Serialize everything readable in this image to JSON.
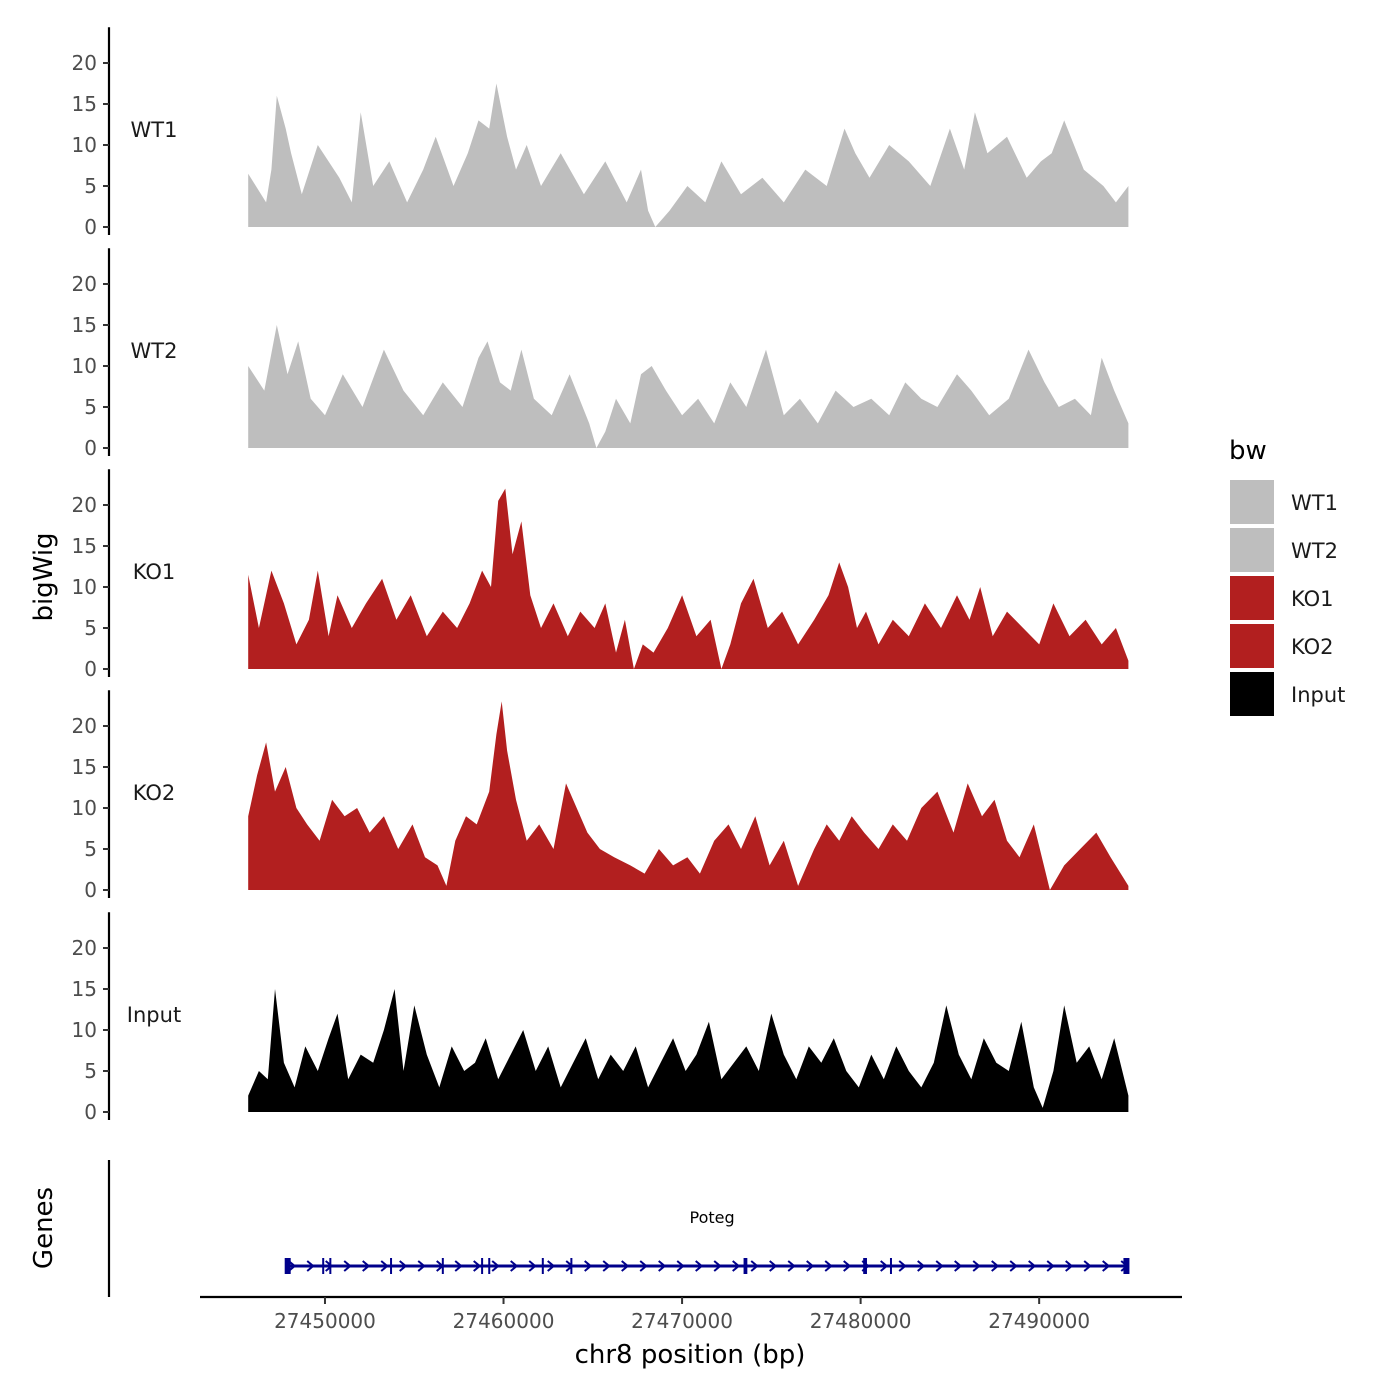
{
  "chart_data": {
    "type": "area",
    "chromosome": "chr8",
    "xlabel": "chr8 position (bp)",
    "ylabel": "bigWig",
    "gene_track_label": "Genes",
    "xlim": [
      27443000,
      27498000
    ],
    "data_range": [
      27445700,
      27495000
    ],
    "xticks": [
      27450000,
      27460000,
      27470000,
      27480000,
      27490000
    ],
    "xtick_labels": [
      "27450000",
      "27460000",
      "27470000",
      "27480000",
      "27490000"
    ],
    "ylim": [
      0,
      24
    ],
    "yticks": [
      0,
      5,
      10,
      15,
      20
    ],
    "ytick_labels": [
      "0",
      "5",
      "10",
      "15",
      "20"
    ],
    "legend": {
      "title": "bw",
      "entries": [
        {
          "label": "WT1",
          "color": "#bebebe"
        },
        {
          "label": "WT2",
          "color": "#bebebe"
        },
        {
          "label": "KO1",
          "color": "#b21f1f"
        },
        {
          "label": "KO2",
          "color": "#b21f1f"
        },
        {
          "label": "Input",
          "color": "#000000"
        }
      ]
    },
    "series": [
      {
        "name": "WT1",
        "color": "#bebebe",
        "x": [
          27445700,
          27446700,
          27447000,
          27447300,
          27447800,
          27448100,
          27448700,
          27449600,
          27450800,
          27451500,
          27452000,
          27452700,
          27453600,
          27454600,
          27455500,
          27456200,
          27457200,
          27458000,
          27458600,
          27459200,
          27459600,
          27460200,
          27460700,
          27461300,
          27462100,
          27463200,
          27464500,
          27465700,
          27466900,
          27467700,
          27468100,
          27468500,
          27469300,
          27470300,
          27471300,
          27472200,
          27473300,
          27474500,
          27475700,
          27476900,
          27478100,
          27479100,
          27479700,
          27480500,
          27481600,
          27482700,
          27483900,
          27485000,
          27485800,
          27486400,
          27487100,
          27488200,
          27489300,
          27490100,
          27490700,
          27491400,
          27492500,
          27493600,
          27494300,
          27495000
        ],
        "values": [
          6.5,
          3,
          7,
          16,
          12,
          9,
          4,
          10,
          6,
          3,
          14,
          5,
          8,
          3,
          7,
          11,
          5,
          9,
          13,
          12,
          17.5,
          11,
          7,
          10,
          5,
          9,
          4,
          8,
          3,
          7,
          2,
          0,
          2,
          5,
          3,
          8,
          4,
          6,
          3,
          7,
          5,
          12,
          9,
          6,
          10,
          8,
          5,
          12,
          7,
          14,
          9,
          11,
          6,
          8,
          9,
          13,
          7,
          5,
          3,
          5
        ]
      },
      {
        "name": "WT2",
        "color": "#bebebe",
        "x": [
          27445700,
          27446600,
          27447300,
          27447900,
          27448500,
          27449200,
          27450000,
          27451000,
          27452100,
          27453300,
          27454400,
          27455500,
          27456600,
          27457700,
          27458600,
          27459100,
          27459800,
          27460400,
          27461000,
          27461700,
          27462700,
          27463700,
          27464800,
          27465200,
          27465700,
          27466300,
          27467100,
          27467700,
          27468300,
          27469100,
          27470000,
          27470900,
          27471800,
          27472700,
          27473600,
          27474700,
          27475700,
          27476600,
          27477600,
          27478600,
          27479600,
          27480600,
          27481600,
          27482500,
          27483400,
          27484300,
          27485400,
          27486200,
          27487200,
          27488300,
          27489400,
          27490300,
          27491100,
          27492000,
          27492900,
          27493500,
          27494200,
          27495000
        ],
        "values": [
          10,
          7,
          15,
          9,
          13,
          6,
          4,
          9,
          5,
          12,
          7,
          4,
          8,
          5,
          11,
          13,
          8,
          7,
          12,
          6,
          4,
          9,
          3,
          0,
          2,
          6,
          3,
          9,
          10,
          7,
          4,
          6,
          3,
          8,
          5,
          12,
          4,
          6,
          3,
          7,
          5,
          6,
          4,
          8,
          6,
          5,
          9,
          7,
          4,
          6,
          12,
          8,
          5,
          6,
          4,
          11,
          7,
          3
        ]
      },
      {
        "name": "KO1",
        "color": "#b21f1f",
        "x": [
          27445700,
          27446300,
          27447000,
          27447700,
          27448400,
          27449100,
          27449600,
          27450200,
          27450700,
          27451500,
          27452300,
          27453200,
          27454000,
          27454800,
          27455700,
          27456600,
          27457400,
          27458100,
          27458800,
          27459300,
          27459700,
          27460100,
          27460500,
          27461000,
          27461500,
          27462100,
          27462800,
          27463600,
          27464300,
          27465100,
          27465700,
          27466300,
          27466800,
          27467300,
          27467800,
          27468400,
          27469200,
          27470000,
          27470800,
          27471600,
          27472200,
          27472700,
          27473300,
          27474000,
          27474800,
          27475600,
          27476500,
          27477400,
          27478200,
          27478800,
          27479300,
          27479800,
          27480300,
          27481000,
          27481800,
          27482700,
          27483600,
          27484500,
          27485400,
          27486100,
          27486700,
          27487400,
          27488200,
          27489100,
          27490000,
          27490800,
          27491700,
          27492600,
          27493500,
          27494300,
          27495000
        ],
        "values": [
          11.5,
          5,
          12,
          8,
          3,
          6,
          12,
          4,
          9,
          5,
          8,
          11,
          6,
          9,
          4,
          7,
          5,
          8,
          12,
          10,
          20.5,
          22,
          14,
          18,
          9,
          5,
          8,
          4,
          7,
          5,
          8,
          2,
          6,
          0,
          3,
          2,
          5,
          9,
          4,
          6,
          0,
          3,
          8,
          11,
          5,
          7,
          3,
          6,
          9,
          13,
          10,
          5,
          7,
          3,
          6,
          4,
          8,
          5,
          9,
          6,
          10,
          4,
          7,
          5,
          3,
          8,
          4,
          6,
          3,
          5,
          1
        ]
      },
      {
        "name": "KO2",
        "color": "#b21f1f",
        "x": [
          27445700,
          27446200,
          27446700,
          27447200,
          27447800,
          27448400,
          27449000,
          27449700,
          27450400,
          27451100,
          27451800,
          27452500,
          27453300,
          27454100,
          27454900,
          27455600,
          27456300,
          27456800,
          27457300,
          27457900,
          27458500,
          27459200,
          27459600,
          27459900,
          27460200,
          27460700,
          27461300,
          27462000,
          27462800,
          27463500,
          27464100,
          27464700,
          27465400,
          27466200,
          27467100,
          27467900,
          27468700,
          27469500,
          27470300,
          27471000,
          27471800,
          27472600,
          27473300,
          27474100,
          27474900,
          27475700,
          27476500,
          27477400,
          27478100,
          27478800,
          27479500,
          27480200,
          27481000,
          27481800,
          27482600,
          27483400,
          27484300,
          27485200,
          27486000,
          27486800,
          27487500,
          27488200,
          27488900,
          27489700,
          27490600,
          27491400,
          27492300,
          27493200,
          27494000,
          27495000
        ],
        "values": [
          9,
          14,
          18,
          12,
          15,
          10,
          8,
          6,
          11,
          9,
          10,
          7,
          9,
          5,
          8,
          4,
          3,
          0.5,
          6,
          9,
          8,
          12,
          19,
          23,
          17,
          11,
          6,
          8,
          5,
          13,
          10,
          7,
          5,
          4,
          3,
          2,
          5,
          3,
          4,
          2,
          6,
          8,
          5,
          9,
          3,
          6,
          0.5,
          5,
          8,
          6,
          9,
          7,
          5,
          8,
          6,
          10,
          12,
          7,
          13,
          9,
          11,
          6,
          4,
          8,
          0,
          3,
          5,
          7,
          4,
          0.5
        ]
      },
      {
        "name": "Input",
        "color": "#000000",
        "x": [
          27445700,
          27446300,
          27446800,
          27447200,
          27447700,
          27448300,
          27448900,
          27449600,
          27450200,
          27450700,
          27451300,
          27452000,
          27452700,
          27453300,
          27453900,
          27454400,
          27455000,
          27455700,
          27456400,
          27457100,
          27457800,
          27458400,
          27459000,
          27459700,
          27460400,
          27461100,
          27461800,
          27462500,
          27463200,
          27463900,
          27464600,
          27465300,
          27466000,
          27466700,
          27467400,
          27468100,
          27468800,
          27469500,
          27470200,
          27470800,
          27471500,
          27472200,
          27472900,
          27473600,
          27474300,
          27475000,
          27475700,
          27476400,
          27477100,
          27477800,
          27478500,
          27479200,
          27479900,
          27480600,
          27481300,
          27482000,
          27482700,
          27483400,
          27484100,
          27484800,
          27485500,
          27486200,
          27486900,
          27487600,
          27488300,
          27489000,
          27489700,
          27490200,
          27490800,
          27491400,
          27492100,
          27492800,
          27493500,
          27494200,
          27495000
        ],
        "values": [
          2,
          5,
          4,
          15,
          6,
          3,
          8,
          5,
          9,
          12,
          4,
          7,
          6,
          10,
          15,
          5,
          13,
          7,
          3,
          8,
          5,
          6,
          9,
          4,
          7,
          10,
          5,
          8,
          3,
          6,
          9,
          4,
          7,
          5,
          8,
          3,
          6,
          9,
          5,
          7,
          11,
          4,
          6,
          8,
          5,
          12,
          7,
          4,
          8,
          6,
          9,
          5,
          3,
          7,
          4,
          8,
          5,
          3,
          6,
          13,
          7,
          4,
          9,
          6,
          5,
          11,
          3,
          0.5,
          5,
          13,
          6,
          8,
          4,
          9,
          2
        ]
      }
    ],
    "gene": {
      "name": "Poteg",
      "start": 27447800,
      "end": 27495000,
      "strand": "+",
      "color": "#00008b",
      "exons": [
        27447900,
        27449900,
        27450300,
        27453700,
        27456600,
        27458800,
        27459200,
        27462200,
        27463800,
        27473500,
        27473600,
        27480200,
        27480300,
        27481700
      ]
    }
  }
}
